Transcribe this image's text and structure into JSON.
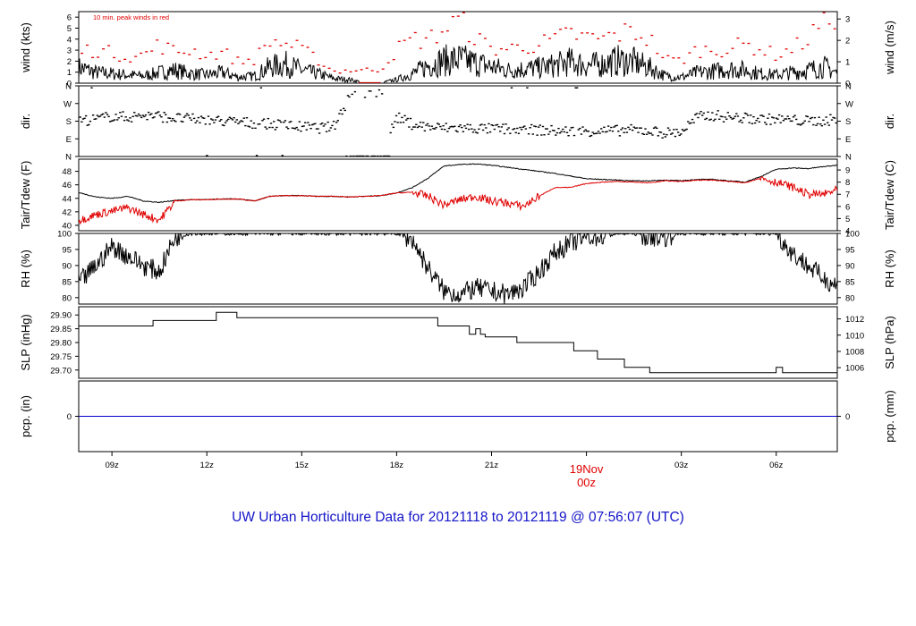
{
  "title": "UW Urban Horticulture Data for 20121118  to  20121119 @ 07:56:07  (UTC)",
  "colors": {
    "title": "#1414c8",
    "axis": "#000000",
    "primary": "#000000",
    "secondary": "#e00000",
    "precip": "#0000cc",
    "date": "#e00000"
  },
  "x_axis": {
    "ticks": [
      {
        "t": 9,
        "label": "09z"
      },
      {
        "t": 12,
        "label": "12z"
      },
      {
        "t": 15,
        "label": "15z"
      },
      {
        "t": 18,
        "label": "18z"
      },
      {
        "t": 21,
        "label": "21z"
      },
      {
        "t": 27,
        "label": "03z"
      },
      {
        "t": 30,
        "label": "06z"
      }
    ],
    "date_label": {
      "t": 24,
      "line1": "19Nov",
      "line2": "00z"
    },
    "range_hours": [
      7.95,
      31.93
    ]
  },
  "panels": [
    {
      "id": "wind",
      "left_label": "wind (kts)",
      "right_label": "wind (m/s)",
      "annotation": "10 min. peak winds in red",
      "ylim": [
        0,
        6.5
      ],
      "left_ticks": [
        {
          "v": 0,
          "l": "0"
        },
        {
          "v": 1,
          "l": "1"
        },
        {
          "v": 2,
          "l": "2"
        },
        {
          "v": 3,
          "l": "3"
        },
        {
          "v": 4,
          "l": "4"
        },
        {
          "v": 5,
          "l": "5"
        },
        {
          "v": 6,
          "l": "6"
        }
      ],
      "right_ticks": [
        {
          "v": 0,
          "l": "0"
        },
        {
          "v": 1.944,
          "l": "1"
        },
        {
          "v": 3.888,
          "l": "2"
        },
        {
          "v": 5.832,
          "l": "3"
        }
      ]
    },
    {
      "id": "dir",
      "left_label": "dir.",
      "right_label": "dir.",
      "ylim": [
        0,
        360
      ],
      "left_ticks": [
        {
          "v": 0,
          "l": "N"
        },
        {
          "v": 90,
          "l": "E"
        },
        {
          "v": 180,
          "l": "S"
        },
        {
          "v": 270,
          "l": "W"
        },
        {
          "v": 360,
          "l": "N"
        }
      ],
      "right_ticks": [
        {
          "v": 0,
          "l": "N"
        },
        {
          "v": 90,
          "l": "E"
        },
        {
          "v": 180,
          "l": "S"
        },
        {
          "v": 270,
          "l": "W"
        },
        {
          "v": 360,
          "l": "N"
        }
      ]
    },
    {
      "id": "temp",
      "left_label": "Tair/Tdew (F)",
      "right_label": "Tair/Tdew (C)",
      "ylim": [
        39.2,
        49.8
      ],
      "left_ticks": [
        {
          "v": 40,
          "l": "40"
        },
        {
          "v": 42,
          "l": "42"
        },
        {
          "v": 44,
          "l": "44"
        },
        {
          "v": 46,
          "l": "46"
        },
        {
          "v": 48,
          "l": "48"
        }
      ],
      "right_ticks": [
        {
          "v": 39.2,
          "l": "4"
        },
        {
          "v": 41,
          "l": "5"
        },
        {
          "v": 42.8,
          "l": "6"
        },
        {
          "v": 44.6,
          "l": "7"
        },
        {
          "v": 46.4,
          "l": "8"
        },
        {
          "v": 48.2,
          "l": "9"
        }
      ]
    },
    {
      "id": "rh",
      "left_label": "RH (%)",
      "right_label": "RH (%)",
      "ylim": [
        78,
        100
      ],
      "left_ticks": [
        {
          "v": 80,
          "l": "80"
        },
        {
          "v": 85,
          "l": "85"
        },
        {
          "v": 90,
          "l": "90"
        },
        {
          "v": 95,
          "l": "95"
        },
        {
          "v": 100,
          "l": "100"
        }
      ],
      "right_ticks": [
        {
          "v": 80,
          "l": "80"
        },
        {
          "v": 85,
          "l": "85"
        },
        {
          "v": 90,
          "l": "90"
        },
        {
          "v": 95,
          "l": "95"
        },
        {
          "v": 100,
          "l": "100"
        }
      ]
    },
    {
      "id": "slp",
      "left_label": "SLP (inHg)",
      "right_label": "SLP (hPa)",
      "ylim": [
        29.67,
        29.93
      ],
      "left_ticks": [
        {
          "v": 29.7,
          "l": "29.70"
        },
        {
          "v": 29.75,
          "l": "29.75"
        },
        {
          "v": 29.8,
          "l": "29.80"
        },
        {
          "v": 29.85,
          "l": "29.85"
        },
        {
          "v": 29.9,
          "l": "29.90"
        }
      ],
      "right_ticks": [
        {
          "v": 29.7086,
          "l": "1006"
        },
        {
          "v": 29.7677,
          "l": "1008"
        },
        {
          "v": 29.8268,
          "l": "1010"
        },
        {
          "v": 29.8858,
          "l": "1012"
        }
      ]
    },
    {
      "id": "pcp",
      "left_label": "pcp. (in)",
      "right_label": "pcp. (mm)",
      "ylim": [
        -1,
        1
      ],
      "left_ticks": [
        {
          "v": 0,
          "l": "0"
        }
      ],
      "right_ticks": [
        {
          "v": 0,
          "l": "0"
        }
      ]
    }
  ],
  "chart_data": [
    {
      "type": "line",
      "title": "",
      "xlabel": "",
      "ylabel": "wind (kts)",
      "ylim": [
        0,
        6.5
      ],
      "series": [
        {
          "x": [
            8,
            8.5,
            9,
            9.5,
            10,
            10.5,
            11,
            11.5,
            12,
            12.5,
            13,
            13.5,
            14,
            14.5,
            15,
            15.5,
            16,
            16.5,
            17,
            17.5,
            18,
            18.5,
            19,
            19.5,
            20,
            20.5,
            21,
            21.5,
            22,
            22.5,
            23,
            23.5,
            24,
            24.5,
            25,
            25.5,
            26,
            26.5,
            27,
            27.5,
            28,
            28.5,
            29,
            29.5,
            30,
            30.5,
            31,
            31.5,
            31.9
          ],
          "values": [
            1.3,
            0.9,
            0.8,
            0.7,
            0.6,
            0.9,
            1.1,
            0.8,
            0.7,
            0.9,
            0.5,
            0.6,
            1.4,
            1.6,
            1.1,
            0.8,
            0.4,
            0.3,
            0.05,
            0.05,
            0.3,
            0.8,
            1.5,
            1.9,
            2.0,
            1.7,
            1.4,
            1.1,
            1.2,
            1.3,
            1.5,
            1.8,
            1.5,
            1.6,
            1.9,
            1.8,
            1.3,
            0.6,
            0.5,
            0.9,
            1.0,
            1.2,
            1.1,
            0.8,
            0.7,
            0.9,
            1.1,
            1.4,
            0.9
          ]
        },
        {
          "name": "10 min. peak winds in red",
          "x": [
            8,
            8.5,
            9,
            9.5,
            10,
            10.5,
            11,
            11.5,
            12,
            12.5,
            13,
            13.5,
            14,
            14.5,
            15,
            15.5,
            16,
            16.5,
            17,
            17.5,
            18,
            18.5,
            19,
            19.5,
            20,
            20.5,
            21,
            21.5,
            22,
            22.5,
            23,
            23.5,
            24,
            24.5,
            25,
            25.5,
            26,
            26.5,
            27,
            27.5,
            28,
            28.5,
            29,
            29.5,
            30,
            30.5,
            31,
            31.5,
            31.9
          ],
          "values": [
            3.0,
            3.1,
            2.8,
            2.5,
            2.6,
            3.6,
            2.9,
            3.1,
            2.6,
            2.9,
            2.0,
            2.2,
            3.9,
            3.7,
            3.1,
            2.2,
            1.1,
            1.2,
            1.2,
            1.3,
            3.1,
            4.1,
            4.0,
            5.0,
            5.9,
            4.2,
            3.2,
            3.2,
            3.4,
            3.6,
            4.0,
            4.6,
            4.2,
            4.1,
            4.6,
            4.8,
            4.1,
            2.2,
            2.1,
            3.1,
            3.1,
            3.2,
            3.6,
            3.2,
            2.6,
            3.2,
            4.1,
            5.9,
            6.5
          ]
        }
      ]
    },
    {
      "type": "scatter",
      "title": "",
      "xlabel": "",
      "ylabel": "dir.",
      "ylim": [
        0,
        360
      ],
      "series": [
        {
          "x": [
            8,
            8.5,
            9,
            9.5,
            10,
            10.5,
            11,
            11.5,
            12,
            12.5,
            13,
            13.5,
            14,
            14.5,
            15,
            15.5,
            16,
            16.5,
            17,
            17.5,
            18,
            18.5,
            19,
            19.5,
            20,
            20.5,
            21,
            21.5,
            22,
            22.5,
            23,
            23.5,
            24,
            24.5,
            25,
            25.5,
            26,
            26.5,
            27,
            27.5,
            28,
            28.5,
            29,
            29.5,
            30,
            30.5,
            31,
            31.5,
            31.9
          ],
          "values": [
            183,
            190,
            205,
            200,
            210,
            205,
            195,
            190,
            185,
            180,
            175,
            170,
            165,
            160,
            150,
            145,
            150,
            300,
            0,
            0,
            200,
            165,
            150,
            145,
            145,
            143,
            140,
            140,
            135,
            135,
            130,
            128,
            130,
            130,
            132,
            135,
            130,
            120,
            125,
            200,
            210,
            200,
            195,
            190,
            190,
            185,
            180,
            182,
            190
          ]
        }
      ]
    },
    {
      "type": "line",
      "title": "",
      "xlabel": "",
      "ylabel": "Tair/Tdew (F)",
      "ylim": [
        39.2,
        49.8
      ],
      "series": [
        {
          "x": [
            8,
            8.5,
            9,
            9.5,
            10,
            10.5,
            11,
            11.5,
            12,
            12.5,
            13,
            13.5,
            14,
            14.5,
            15,
            15.5,
            16,
            16.5,
            17,
            17.5,
            18,
            18.5,
            19,
            19.5,
            20,
            20.5,
            21,
            21.5,
            22,
            22.5,
            23,
            23.5,
            24,
            24.5,
            25,
            25.5,
            26,
            26.5,
            27,
            27.5,
            28,
            28.5,
            29,
            29.5,
            30,
            30.5,
            31,
            31.5,
            31.9
          ],
          "values": [
            44.8,
            44.2,
            44.0,
            44.3,
            43.6,
            43.4,
            43.7,
            43.8,
            43.8,
            43.9,
            43.9,
            43.6,
            44.3,
            44.4,
            44.4,
            44.3,
            44.3,
            44.2,
            44.3,
            44.4,
            44.8,
            45.6,
            47.0,
            48.8,
            49.0,
            49.1,
            48.9,
            48.6,
            48.3,
            48.0,
            47.7,
            47.3,
            46.9,
            46.8,
            46.7,
            46.6,
            46.6,
            46.7,
            46.6,
            46.8,
            46.8,
            46.6,
            46.4,
            47.2,
            48.3,
            48.5,
            48.4,
            48.7,
            48.9
          ]
        },
        {
          "x": [
            8,
            8.5,
            9,
            9.5,
            10,
            10.5,
            11,
            11.5,
            12,
            12.5,
            13,
            13.5,
            14,
            14.5,
            15,
            15.5,
            16,
            16.5,
            17,
            17.5,
            18,
            18.5,
            19,
            19.5,
            20,
            20.5,
            21,
            21.5,
            22,
            22.5,
            23,
            23.5,
            24,
            24.5,
            25,
            25.5,
            26,
            26.5,
            27,
            27.5,
            28,
            28.5,
            29,
            29.5,
            30,
            30.5,
            31,
            31.5,
            31.9
          ],
          "values": [
            40.8,
            41.6,
            42.1,
            42.6,
            41.6,
            40.8,
            43.6,
            43.8,
            43.8,
            43.9,
            43.9,
            43.6,
            44.3,
            44.4,
            44.4,
            44.3,
            44.3,
            44.2,
            44.3,
            44.4,
            44.8,
            44.9,
            44.3,
            43.0,
            43.8,
            44.3,
            43.6,
            43.3,
            42.8,
            44.3,
            45.6,
            45.6,
            46.2,
            46.4,
            46.5,
            46.4,
            46.3,
            46.6,
            46.5,
            46.7,
            46.7,
            46.5,
            46.3,
            47.0,
            46.4,
            45.7,
            44.6,
            44.6,
            45.2
          ]
        }
      ]
    },
    {
      "type": "line",
      "title": "",
      "xlabel": "",
      "ylabel": "RH (%)",
      "ylim": [
        78,
        100
      ],
      "series": [
        {
          "x": [
            8,
            8.5,
            9,
            9.5,
            10,
            10.5,
            11,
            11.5,
            12,
            12.5,
            13,
            13.5,
            14,
            14.5,
            15,
            15.5,
            16,
            16.5,
            17,
            17.5,
            18,
            18.5,
            19,
            19.5,
            20,
            20.5,
            21,
            21.5,
            22,
            22.5,
            23,
            23.5,
            24,
            24.5,
            25,
            25.5,
            26,
            26.5,
            27,
            27.5,
            28,
            28.5,
            29,
            29.5,
            30,
            30.5,
            31,
            31.5,
            31.9
          ],
          "values": [
            85,
            90,
            96,
            93,
            90,
            88,
            99,
            100,
            100,
            100,
            100,
            100,
            100,
            100,
            100,
            100,
            100,
            100,
            100,
            100,
            100,
            98,
            89,
            82,
            81,
            83,
            82,
            81,
            83,
            88,
            94,
            97,
            99,
            99,
            100,
            100,
            99,
            99,
            100,
            100,
            100,
            100,
            100,
            100,
            100,
            94,
            90,
            86,
            84
          ]
        }
      ]
    },
    {
      "type": "line",
      "title": "",
      "xlabel": "",
      "ylabel": "SLP (inHg)",
      "ylim": [
        29.67,
        29.93
      ],
      "series": [
        {
          "x": [
            7.95,
            10.3,
            10.3,
            12.3,
            12.3,
            12.95,
            12.95,
            19.3,
            19.3,
            20.3,
            20.3,
            20.5,
            20.5,
            20.65,
            20.65,
            20.8,
            20.8,
            21.8,
            21.8,
            23.6,
            23.6,
            24.35,
            24.35,
            25.2,
            25.2,
            26.0,
            26.0,
            30.0,
            30.0,
            30.2,
            30.2,
            31.93
          ],
          "values": [
            29.86,
            29.86,
            29.88,
            29.88,
            29.91,
            29.91,
            29.89,
            29.89,
            29.86,
            29.86,
            29.83,
            29.83,
            29.85,
            29.85,
            29.83,
            29.83,
            29.82,
            29.82,
            29.8,
            29.8,
            29.77,
            29.77,
            29.74,
            29.74,
            29.71,
            29.71,
            29.69,
            29.69,
            29.71,
            29.71,
            29.69,
            29.69
          ]
        }
      ]
    },
    {
      "type": "line",
      "title": "",
      "xlabel": "",
      "ylabel": "pcp. (in)",
      "ylim": [
        -1,
        1
      ],
      "series": [
        {
          "x": [
            7.95,
            31.93
          ],
          "values": [
            0,
            0
          ]
        }
      ]
    }
  ]
}
